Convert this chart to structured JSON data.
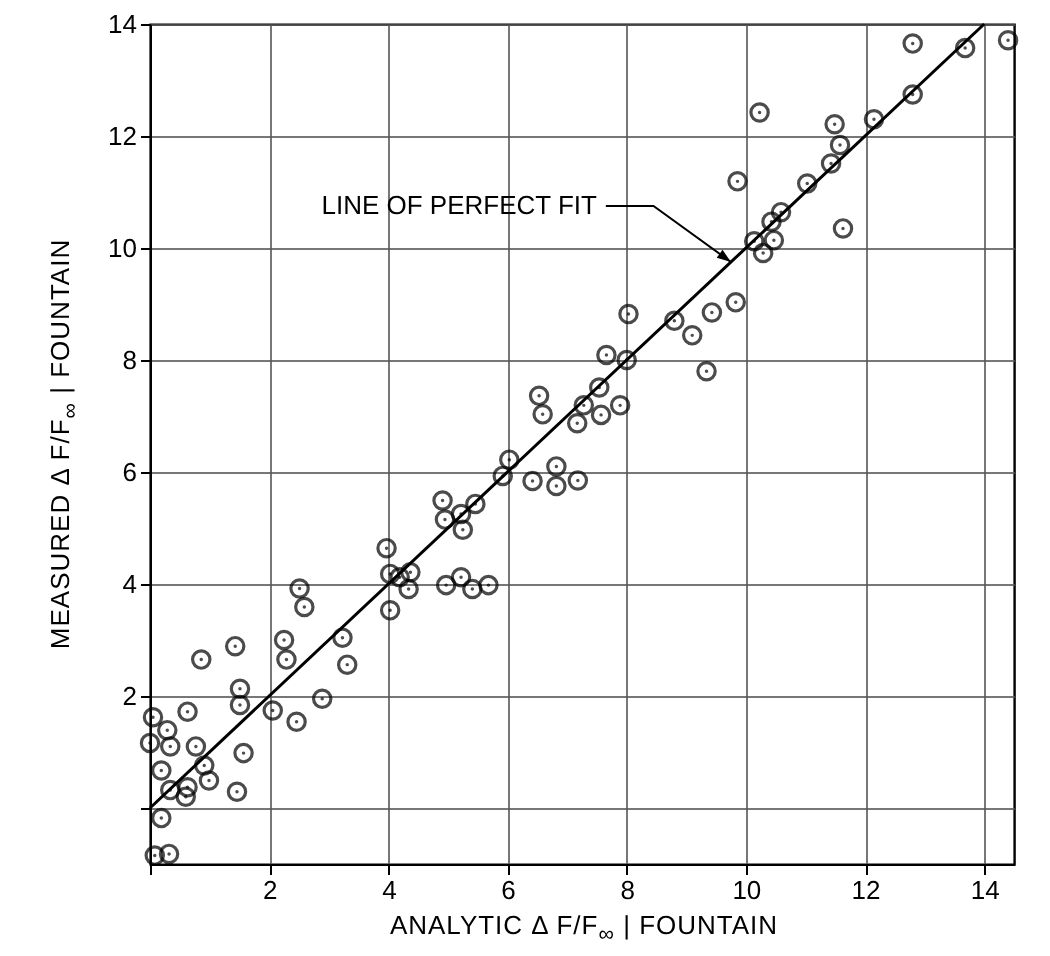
{
  "chart_data": {
    "type": "scatter",
    "xlabel": "ANALYTIC Δ F/F$_{∞}$ | FOUNTAIN",
    "ylabel": "MEASURED Δ F/F$_{∞}$ | FOUNTAIN",
    "xlim": [
      0,
      14.5
    ],
    "ylim": [
      -1,
      14
    ],
    "xticks": [
      {
        "value": 0,
        "label": null
      },
      2,
      4,
      6,
      8,
      10,
      12,
      14
    ],
    "yticks": [
      {
        "value": 0,
        "label": null
      },
      2,
      4,
      6,
      8,
      10,
      12,
      14
    ],
    "grid": true,
    "marker": "circle",
    "series": [
      {
        "color": "#000000",
        "x": [
          0.05,
          0.29,
          0.0,
          0.34,
          0.19,
          0.34,
          0.6,
          0.63,
          0.77,
          0.63,
          0.91,
          0.99,
          0.86,
          0.19,
          0.08,
          0.32,
          1.43,
          1.51,
          1.51,
          1.57,
          1.46,
          2.06,
          2.25,
          2.29,
          2.46,
          2.51,
          2.59,
          2.89,
          3.23,
          3.31,
          3.97,
          4.03,
          4.03,
          4.19,
          4.37,
          4.34,
          4.97,
          5.22,
          5.41,
          5.68,
          4.91,
          4.95,
          5.22,
          5.25,
          5.46,
          5.92,
          6.03,
          6.42,
          6.53,
          6.59,
          6.82,
          6.82,
          7.18,
          7.17,
          7.28,
          7.54,
          7.57,
          7.66,
          7.89,
          8.0,
          8.03,
          8.8,
          9.1,
          9.34,
          9.43,
          9.83,
          9.86,
          10.14,
          10.29,
          10.23,
          10.43,
          10.47,
          10.59,
          11.03,
          11.43,
          11.49,
          11.58,
          11.63,
          12.15,
          12.8,
          12.8,
          13.68,
          14.4
        ],
        "values": [
          1.62,
          1.39,
          1.16,
          1.1,
          0.67,
          0.32,
          0.2,
          0.37,
          1.1,
          1.72,
          0.76,
          0.49,
          2.65,
          -0.18,
          -0.85,
          -0.82,
          2.89,
          2.13,
          1.84,
          0.98,
          0.29,
          1.74,
          3.0,
          2.65,
          1.54,
          3.92,
          3.59,
          1.95,
          3.04,
          2.56,
          4.64,
          4.18,
          3.53,
          4.12,
          4.21,
          3.91,
          3.98,
          4.12,
          3.91,
          3.98,
          5.49,
          5.15,
          5.25,
          4.97,
          5.43,
          5.93,
          6.22,
          5.84,
          7.36,
          7.03,
          6.1,
          5.75,
          5.85,
          6.87,
          7.19,
          7.51,
          7.02,
          8.09,
          7.19,
          8.0,
          8.82,
          8.7,
          8.44,
          7.8,
          8.85,
          9.03,
          11.19,
          10.12,
          9.91,
          12.42,
          10.47,
          10.14,
          10.64,
          11.15,
          11.51,
          12.21,
          11.84,
          10.35,
          12.3,
          12.74,
          13.65,
          13.57,
          13.71
        ]
      },
      {
        "type": "line",
        "color": "#000000",
        "marker": "none",
        "x": [
          0,
          14
        ],
        "values": [
          0,
          14
        ]
      }
    ],
    "annotations": [
      {
        "text": "LINE OF PERFECT FIT",
        "x": 9.75,
        "y": 9.75
      }
    ]
  }
}
